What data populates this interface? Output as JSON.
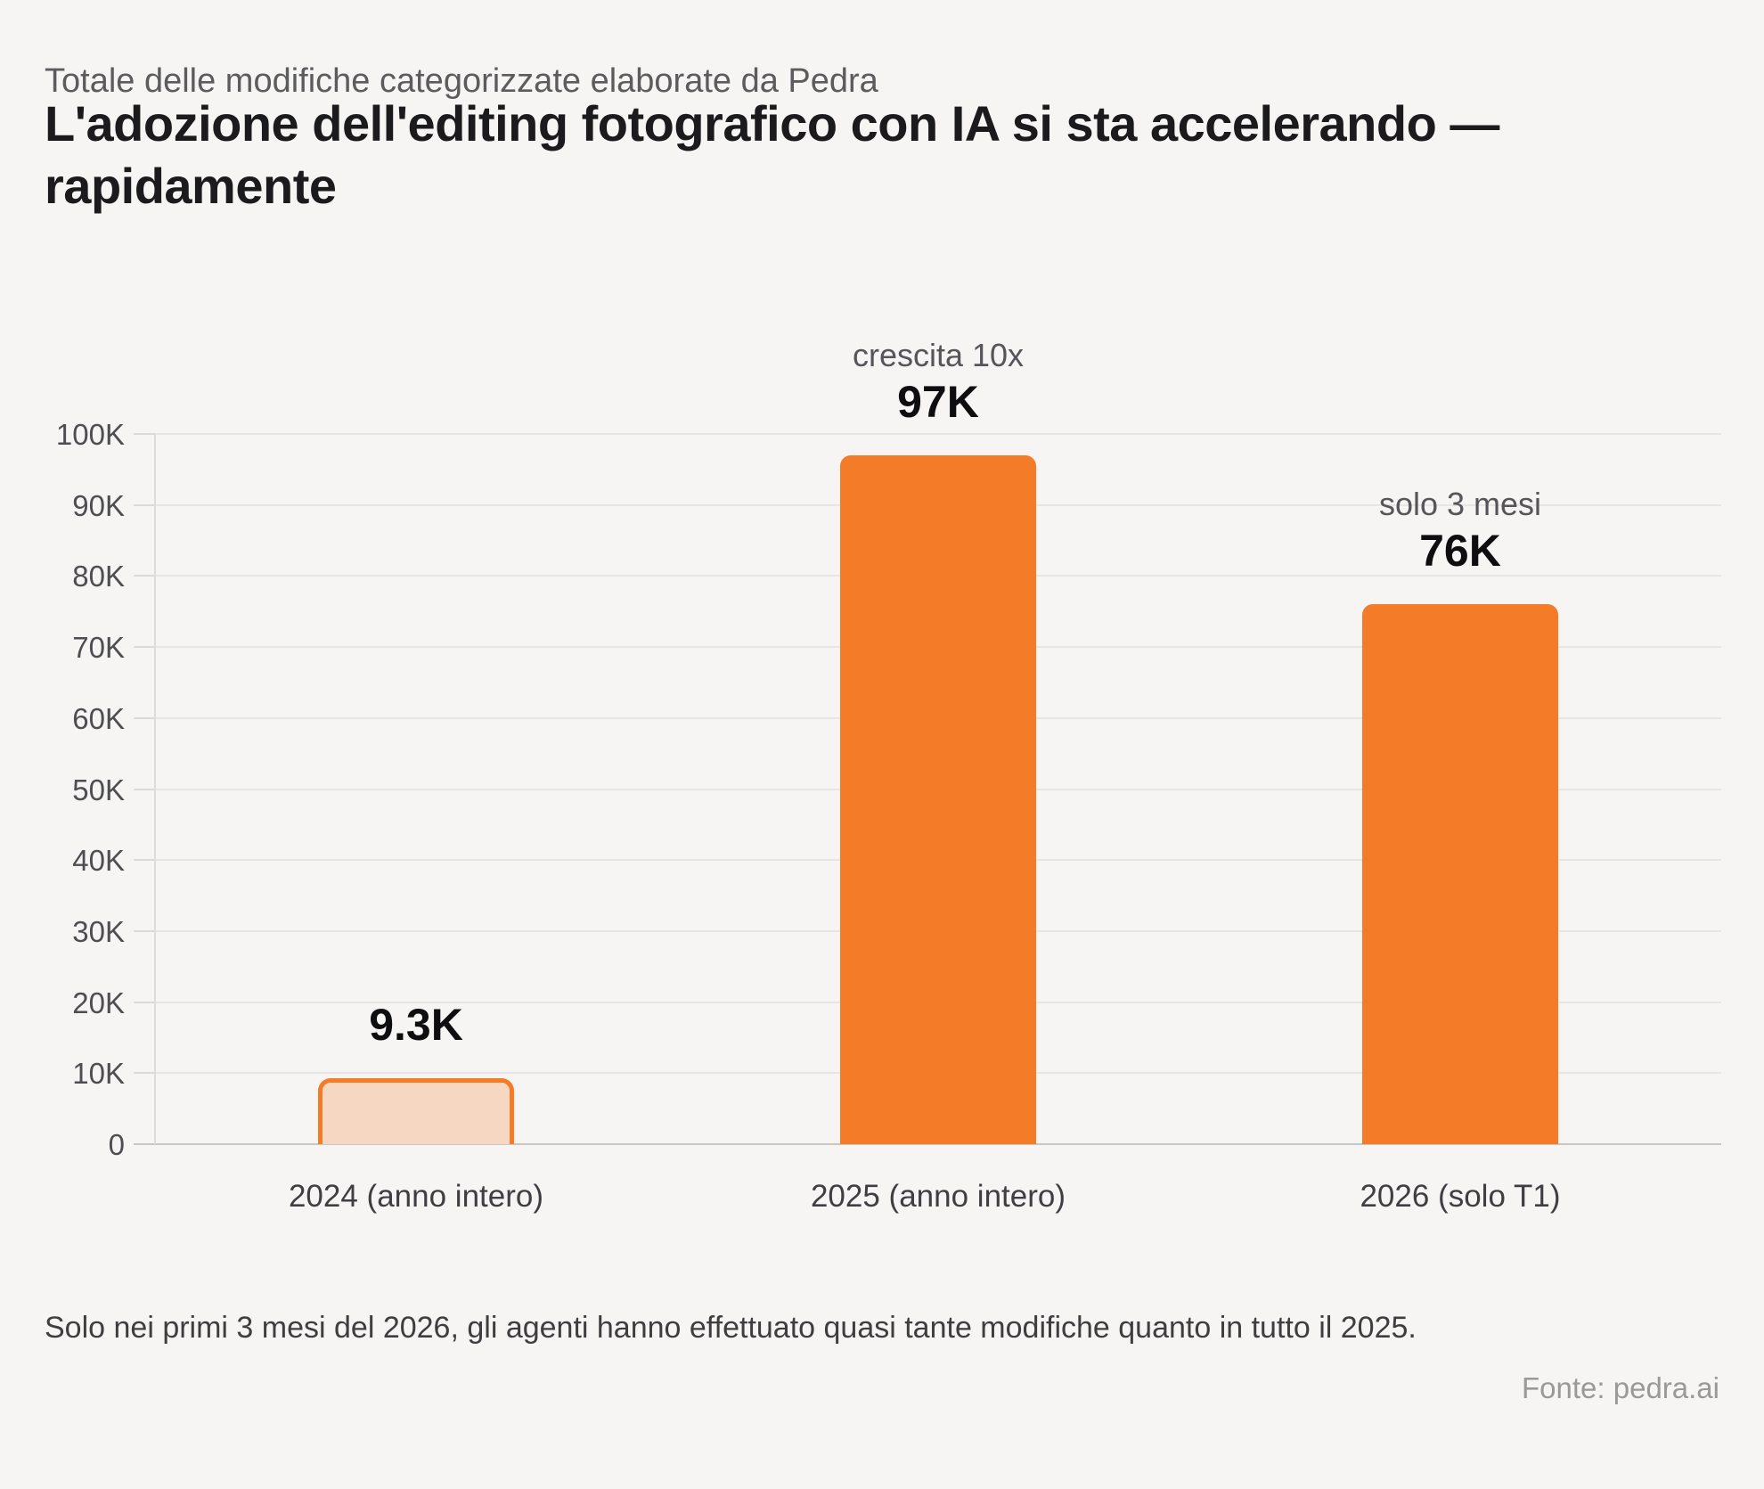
{
  "header": {
    "eyebrow": "Totale delle modifiche categorizzate elaborate da Pedra",
    "title": "L'adozione dell'editing fotografico con IA si sta accelerando —\nrapidamente"
  },
  "chart_data": {
    "type": "bar",
    "title": "L'adozione dell'editing fotografico con IA si sta accelerando — rapidamente",
    "subtitle": "Totale delle modifiche categorizzate elaborate da Pedra",
    "categories": [
      "2024 (anno intero)",
      "2025 (anno intero)",
      "2026 (solo T1)"
    ],
    "values": [
      9300,
      97000,
      76000
    ],
    "value_labels": [
      "9.3K",
      "97K",
      "76K"
    ],
    "annotations": [
      "",
      "crescita 10x",
      "solo 3 mesi"
    ],
    "bar_styles": [
      "muted-outline",
      "solid",
      "solid"
    ],
    "ylim": [
      0,
      100000
    ],
    "ytick_step": 10000,
    "ytick_labels": [
      "0",
      "10K",
      "20K",
      "30K",
      "40K",
      "50K",
      "60K",
      "70K",
      "80K",
      "90K",
      "100K"
    ],
    "grid": true,
    "legend_position": "none",
    "colors": {
      "bar_solid": "#F47B27",
      "bar_outline": "#F47B27",
      "bar_muted_fill": "#F6D8C2",
      "background": "#F6F5F4",
      "gridline": "#E7E6E4",
      "baseline": "#C9C7C5"
    }
  },
  "footer": {
    "note": "Solo nei primi 3 mesi del 2026, gli agenti hanno effettuato quasi tante modifiche quanto in tutto il 2025.",
    "source": "Fonte: pedra.ai"
  }
}
